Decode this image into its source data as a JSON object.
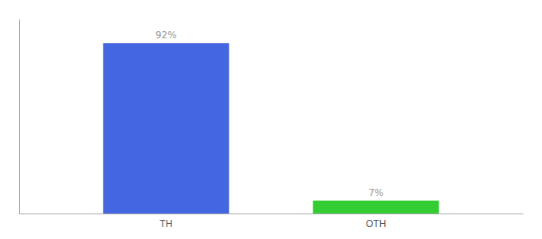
{
  "chart_data": {
    "type": "bar",
    "categories": [
      "TH",
      "OTH"
    ],
    "values": [
      92,
      7
    ],
    "value_labels": [
      "92%",
      "7%"
    ],
    "colors": [
      "#4466e0",
      "#33cc33"
    ],
    "ylim": [
      0,
      105
    ],
    "data_labels": true,
    "tick_labels": "x",
    "grid": false
  }
}
